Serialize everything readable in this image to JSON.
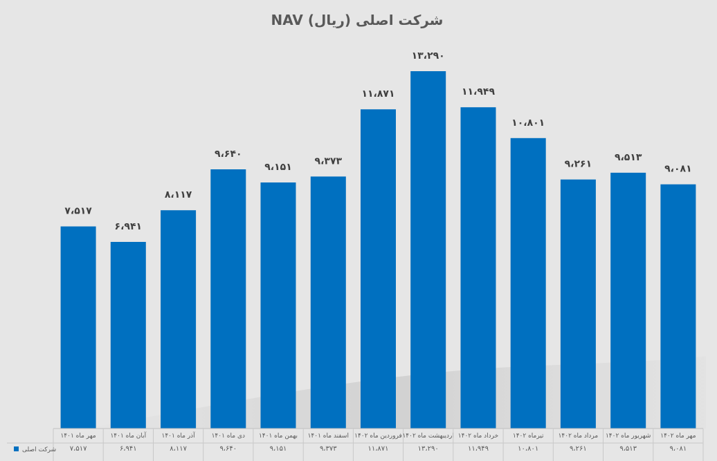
{
  "chart_data": {
    "type": "bar",
    "title": "NAV شرکت اصلی (ریال)",
    "categories": [
      "مهر ماه ۱۴۰۱",
      "آبان ماه ۱۴۰۱",
      "آذر ماه ۱۴۰۱",
      "دی ماه ۱۴۰۱",
      "بهمن ماه ۱۴۰۱",
      "اسفند ماه ۱۴۰۱",
      "فروردین ماه ۱۴۰۲",
      "اردیبهشت ماه ۱۴۰۲",
      "خرداد ماه ۱۴۰۲",
      "تیرماه ۱۴۰۲",
      "مرداد ماه ۱۴۰۲",
      "شهریور ماه ۱۴۰۲",
      "مهر ماه ۱۴۰۲"
    ],
    "series": [
      {
        "name": "شرکت اصلی",
        "values": [
          7517,
          6941,
          8117,
          9640,
          9151,
          9373,
          11871,
          13290,
          11949,
          10801,
          9261,
          9513,
          9081
        ],
        "labels": [
          "۷،۵۱۷",
          "۶،۹۴۱",
          "۸،۱۱۷",
          "۹،۶۴۰",
          "۹،۱۵۱",
          "۹،۳۷۳",
          "۱۱،۸۷۱",
          "۱۳،۲۹۰",
          "۱۱،۹۴۹",
          "۱۰،۸۰۱",
          "۹،۲۶۱",
          "۹،۵۱۳",
          "۹،۰۸۱"
        ]
      }
    ],
    "ylim": [
      0,
      14000
    ],
    "grid": false,
    "legend": "bottom-left (data table)",
    "bar_color": "#0070c0"
  }
}
